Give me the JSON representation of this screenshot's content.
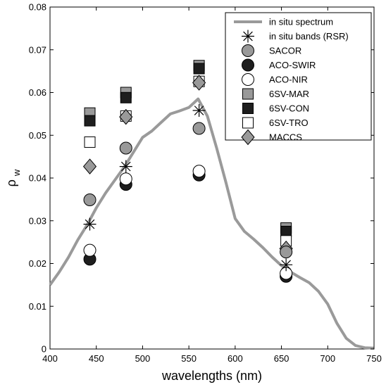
{
  "chart_data": {
    "type": "scatter",
    "xlabel": "wavelengths (nm)",
    "ylabel_main": "ρ",
    "ylabel_sub": "w",
    "xlim": [
      400,
      750
    ],
    "ylim": [
      0,
      0.08
    ],
    "xticks": [
      400,
      450,
      500,
      550,
      600,
      650,
      700,
      750
    ],
    "yticks": [
      0,
      0.01,
      0.02,
      0.03,
      0.04,
      0.05,
      0.06,
      0.07,
      0.08
    ],
    "grid": false,
    "legend_position": "top-right",
    "in_situ_spectrum": {
      "name": "in situ spectrum",
      "color": "#9a9a9a",
      "x": [
        400,
        410,
        420,
        430,
        440,
        450,
        460,
        470,
        480,
        490,
        500,
        510,
        520,
        530,
        540,
        550,
        560,
        570,
        580,
        590,
        600,
        610,
        620,
        630,
        640,
        650,
        660,
        670,
        680,
        690,
        700,
        710,
        720,
        730,
        740,
        750
      ],
      "y": [
        0.015,
        0.018,
        0.0215,
        0.0255,
        0.029,
        0.033,
        0.0365,
        0.0395,
        0.0425,
        0.046,
        0.0495,
        0.051,
        0.053,
        0.055,
        0.0557,
        0.0565,
        0.0585,
        0.0545,
        0.047,
        0.039,
        0.0305,
        0.0275,
        0.0257,
        0.0237,
        0.0215,
        0.0195,
        0.018,
        0.0167,
        0.0155,
        0.0135,
        0.0105,
        0.006,
        0.0025,
        0.0008,
        0.0003,
        0.0002
      ]
    },
    "x": [
      443,
      482,
      561,
      655
    ],
    "series": [
      {
        "name": "in situ bands (RSR)",
        "marker": "asterisk",
        "color": "#000000",
        "values": [
          0.0292,
          0.0427,
          0.0558,
          0.0197
        ]
      },
      {
        "name": "SACOR",
        "marker": "circle",
        "color": "#999999",
        "values": [
          0.0349,
          0.047,
          0.0516,
          0.0227
        ]
      },
      {
        "name": "ACO-SWIR",
        "marker": "circle",
        "color": "#1e1e1e",
        "values": [
          0.021,
          0.0385,
          0.0407,
          0.017
        ]
      },
      {
        "name": "ACO-NIR",
        "marker": "circle",
        "color": "#ffffff",
        "values": [
          0.0231,
          0.0398,
          0.0416,
          0.0177
        ]
      },
      {
        "name": "6SV-MAR",
        "marker": "square",
        "color": "#999999",
        "values": [
          0.0552,
          0.06,
          0.0663,
          0.0283
        ]
      },
      {
        "name": "6SV-CON",
        "marker": "square",
        "color": "#1e1e1e",
        "values": [
          0.0534,
          0.0588,
          0.0656,
          0.0275
        ]
      },
      {
        "name": "6SV-TRO",
        "marker": "square",
        "color": "#ffffff",
        "values": [
          0.0484,
          0.0545,
          0.0626,
          0.0253
        ]
      },
      {
        "name": "MACCS",
        "marker": "diamond",
        "color": "#999999",
        "values": [
          0.0427,
          0.0543,
          0.0623,
          0.0235
        ]
      }
    ]
  }
}
